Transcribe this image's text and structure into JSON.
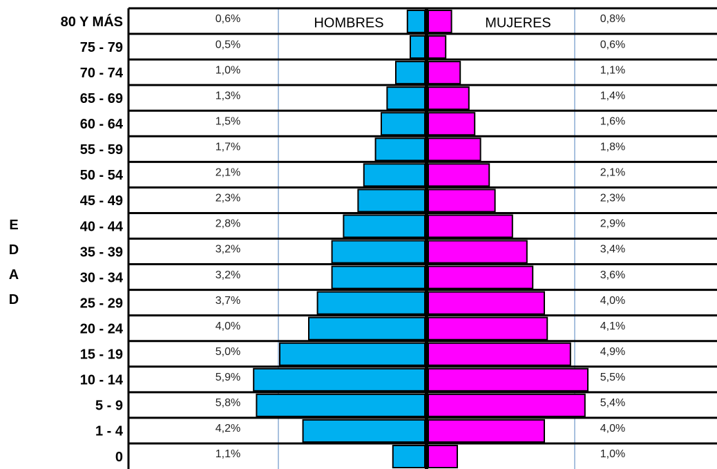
{
  "chart_data": {
    "type": "pyramid",
    "y_label": "EDAD",
    "categories": [
      "80 Y MÁS",
      "75 - 79",
      "70 - 74",
      "65 - 69",
      "60 - 64",
      "55 - 59",
      "50 - 54",
      "45 - 49",
      "40 - 44",
      "35 - 39",
      "30 - 34",
      "25 - 29",
      "20 - 24",
      "15 - 19",
      "10 - 14",
      "5 - 9",
      "1 - 4",
      "0"
    ],
    "series": [
      {
        "name": "HOMBRES",
        "color": "#00b0f0",
        "values": [
          0.6,
          0.5,
          1.0,
          1.3,
          1.5,
          1.7,
          2.1,
          2.3,
          2.8,
          3.2,
          3.2,
          3.7,
          4.0,
          5.0,
          5.9,
          5.8,
          4.2,
          1.1
        ],
        "value_labels": [
          "0,6%",
          "0,5%",
          "1,0%",
          "1,3%",
          "1,5%",
          "1,7%",
          "2,1%",
          "2,3%",
          "2,8%",
          "3,2%",
          "3,2%",
          "3,7%",
          "4,0%",
          "5,0%",
          "5,9%",
          "5,8%",
          "4,2%",
          "1,1%"
        ]
      },
      {
        "name": "MUJERES",
        "color": "#ff00ff",
        "values": [
          0.8,
          0.6,
          1.1,
          1.4,
          1.6,
          1.8,
          2.1,
          2.3,
          2.9,
          3.4,
          3.6,
          4.0,
          4.1,
          4.9,
          5.5,
          5.4,
          4.0,
          1.0
        ],
        "value_labels": [
          "0,8%",
          "0,6%",
          "1,1%",
          "1,4%",
          "1,6%",
          "1,8%",
          "2,1%",
          "2,3%",
          "2,9%",
          "3,4%",
          "3,6%",
          "4,0%",
          "4,1%",
          "4,9%",
          "5,5%",
          "5,4%",
          "4,0%",
          "1,0%"
        ]
      }
    ]
  }
}
